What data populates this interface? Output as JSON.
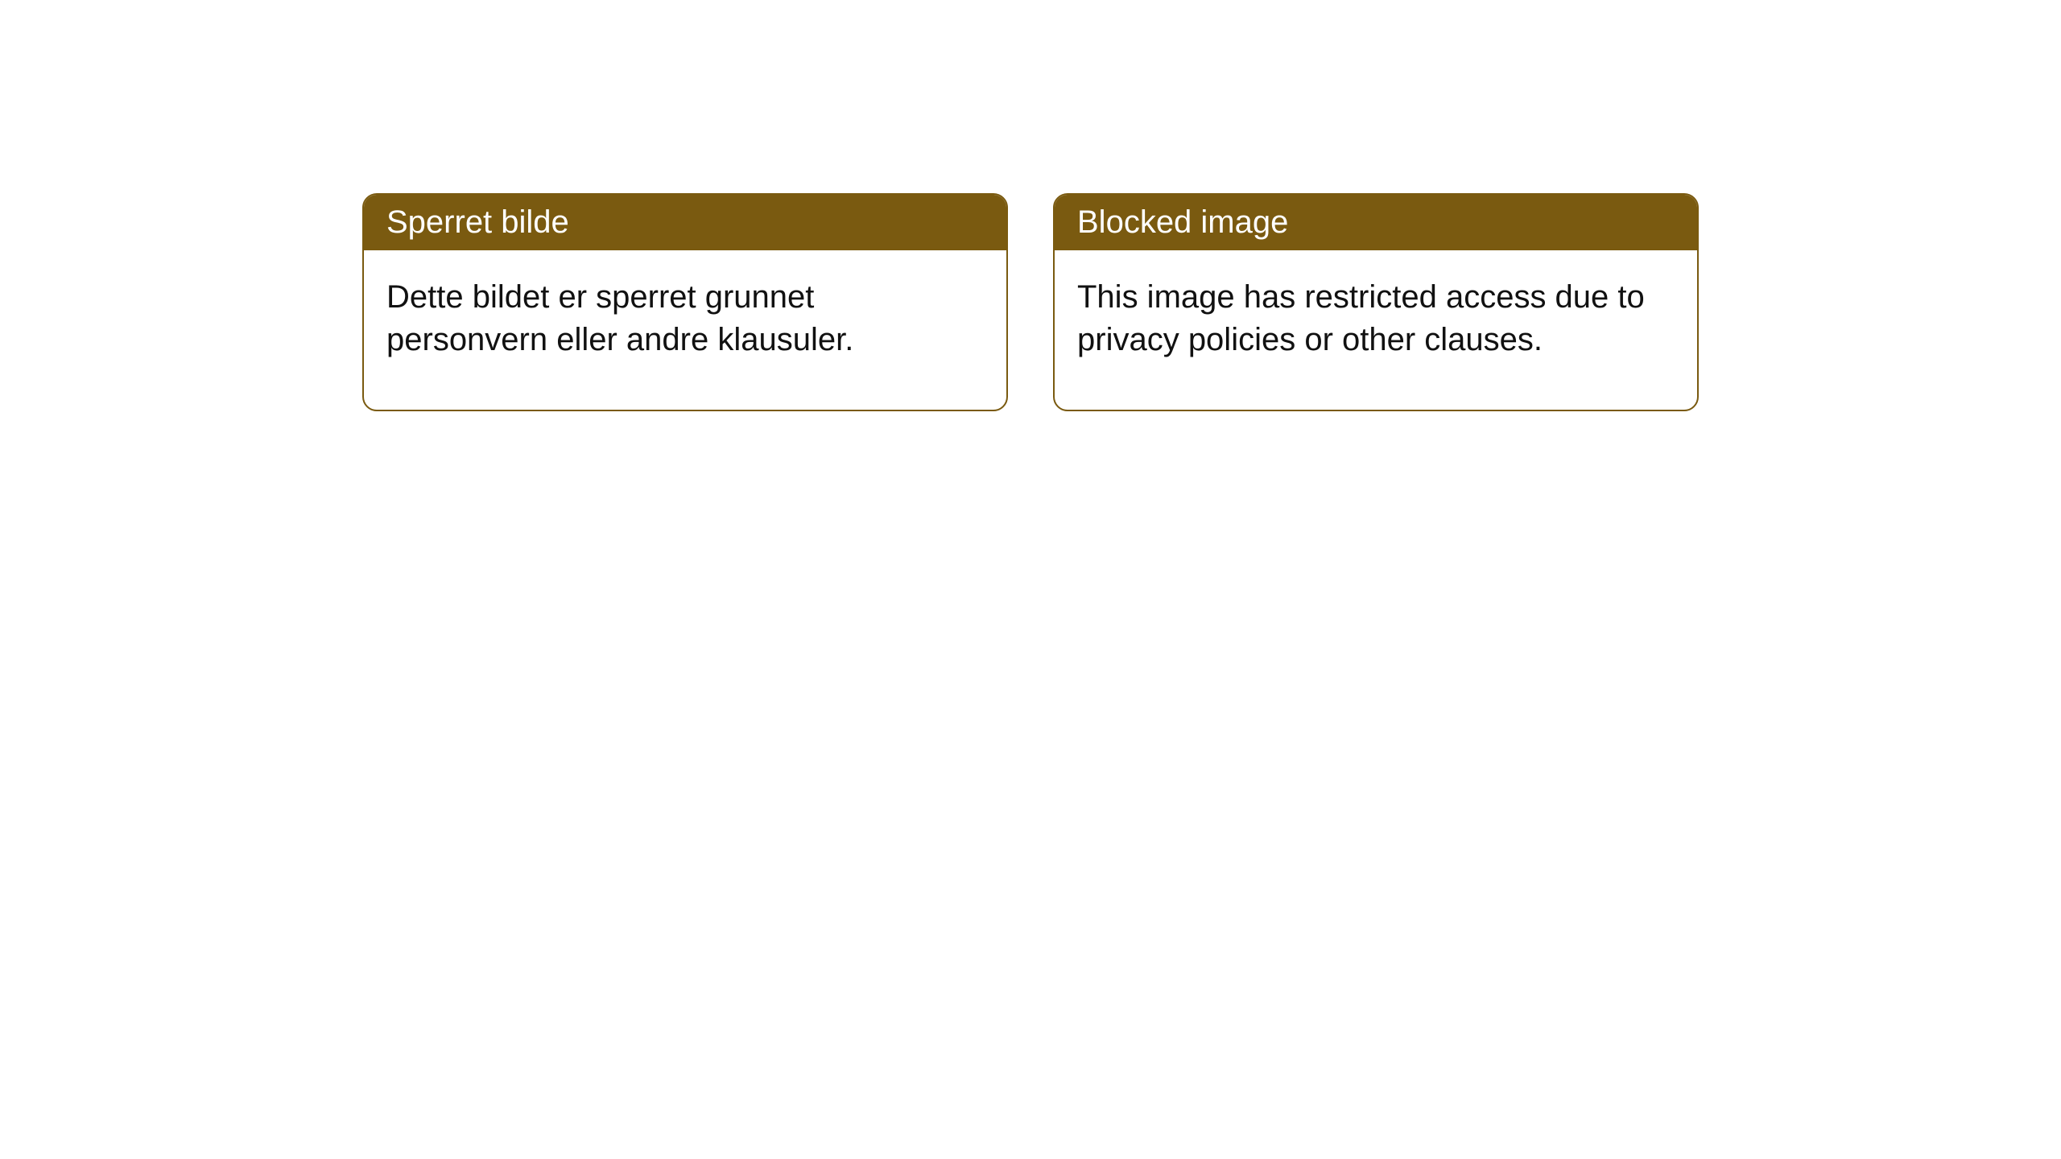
{
  "cards": [
    {
      "title": "Sperret bilde",
      "body": "Dette bildet er sperret grunnet personvern eller andre klausuler."
    },
    {
      "title": "Blocked image",
      "body": "This image has restricted access due to privacy policies or other clauses."
    }
  ],
  "style": {
    "card_border_color": "#7a5a10",
    "card_header_bg": "#7a5a10",
    "card_header_text_color": "#ffffff",
    "card_body_text_color": "#111111",
    "page_bg": "#ffffff",
    "header_fontsize": 40,
    "body_fontsize": 40,
    "border_radius": 18
  }
}
